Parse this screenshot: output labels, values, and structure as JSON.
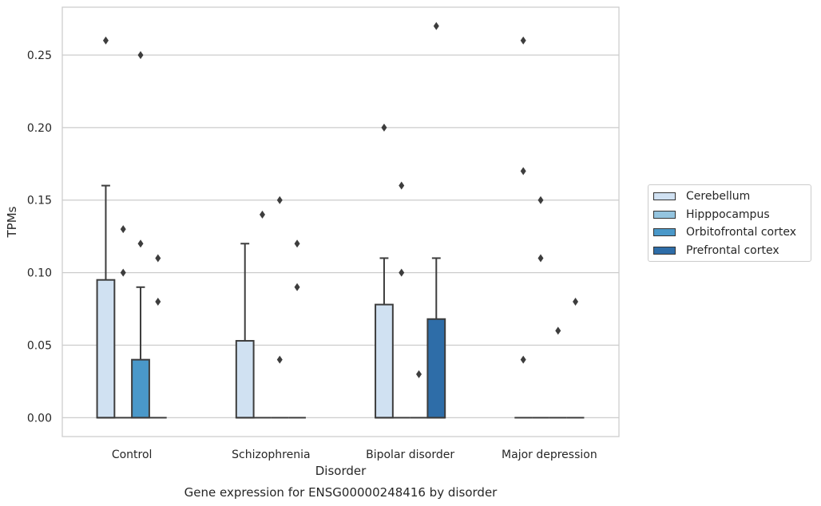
{
  "chart_data": {
    "type": "box",
    "title": "Gene expression for ENSG00000248416 by disorder",
    "xlabel": "Disorder",
    "ylabel": "TPMs",
    "categories": [
      "Control",
      "Schizophrenia",
      "Bipolar disorder",
      "Major depression"
    ],
    "ylim": [
      -0.013,
      0.283
    ],
    "yticks": [
      0.0,
      0.05,
      0.1,
      0.15,
      0.2,
      0.25
    ],
    "ytick_labels": [
      "0.00",
      "0.05",
      "0.10",
      "0.15",
      "0.20",
      "0.25"
    ],
    "grid": true,
    "legend_position": "right",
    "series": [
      {
        "name": "Cerebellum",
        "color": "#d0e1f2",
        "boxes": [
          {
            "q1": 0.0,
            "median": 0.0,
            "q3": 0.095,
            "whisker_low": 0.0,
            "whisker_high": 0.16,
            "outliers": [
              0.26
            ]
          },
          {
            "q1": 0.0,
            "median": 0.0,
            "q3": 0.053,
            "whisker_low": 0.0,
            "whisker_high": 0.12,
            "outliers": []
          },
          {
            "q1": 0.0,
            "median": 0.0,
            "q3": 0.078,
            "whisker_low": 0.0,
            "whisker_high": 0.11,
            "outliers": [
              0.2
            ]
          },
          {
            "q1": 0.0,
            "median": 0.0,
            "q3": 0.0,
            "whisker_low": 0.0,
            "whisker_high": 0.0,
            "outliers": [
              0.26,
              0.17,
              0.04
            ]
          }
        ]
      },
      {
        "name": "Hipppocampus",
        "color": "#94c4df",
        "boxes": [
          {
            "q1": 0.0,
            "median": 0.0,
            "q3": 0.0,
            "whisker_low": 0.0,
            "whisker_high": 0.0,
            "outliers": [
              0.13,
              0.1
            ]
          },
          {
            "q1": 0.0,
            "median": 0.0,
            "q3": 0.0,
            "whisker_low": 0.0,
            "whisker_high": 0.0,
            "outliers": [
              0.14
            ]
          },
          {
            "q1": 0.0,
            "median": 0.0,
            "q3": 0.0,
            "whisker_low": 0.0,
            "whisker_high": 0.0,
            "outliers": [
              0.16,
              0.1
            ]
          },
          {
            "q1": 0.0,
            "median": 0.0,
            "q3": 0.0,
            "whisker_low": 0.0,
            "whisker_high": 0.0,
            "outliers": [
              0.15,
              0.11
            ]
          }
        ]
      },
      {
        "name": "Orbitofrontal cortex",
        "color": "#4a98c9",
        "boxes": [
          {
            "q1": 0.0,
            "median": 0.0,
            "q3": 0.04,
            "whisker_low": 0.0,
            "whisker_high": 0.09,
            "outliers": [
              0.25,
              0.12
            ]
          },
          {
            "q1": 0.0,
            "median": 0.0,
            "q3": 0.0,
            "whisker_low": 0.0,
            "whisker_high": 0.0,
            "outliers": [
              0.15,
              0.04
            ]
          },
          {
            "q1": 0.0,
            "median": 0.0,
            "q3": 0.0,
            "whisker_low": 0.0,
            "whisker_high": 0.0,
            "outliers": [
              0.03
            ]
          },
          {
            "q1": 0.0,
            "median": 0.0,
            "q3": 0.0,
            "whisker_low": 0.0,
            "whisker_high": 0.0,
            "outliers": [
              0.06
            ]
          }
        ]
      },
      {
        "name": "Prefrontal cortex",
        "color": "#2e6da8",
        "boxes": [
          {
            "q1": 0.0,
            "median": 0.0,
            "q3": 0.0,
            "whisker_low": 0.0,
            "whisker_high": 0.0,
            "outliers": [
              0.11,
              0.08
            ]
          },
          {
            "q1": 0.0,
            "median": 0.0,
            "q3": 0.0,
            "whisker_low": 0.0,
            "whisker_high": 0.0,
            "outliers": [
              0.12,
              0.09
            ]
          },
          {
            "q1": 0.0,
            "median": 0.0,
            "q3": 0.068,
            "whisker_low": 0.0,
            "whisker_high": 0.11,
            "outliers": [
              0.27
            ]
          },
          {
            "q1": 0.0,
            "median": 0.0,
            "q3": 0.0,
            "whisker_low": 0.0,
            "whisker_high": 0.0,
            "outliers": [
              0.08
            ]
          }
        ]
      }
    ]
  }
}
